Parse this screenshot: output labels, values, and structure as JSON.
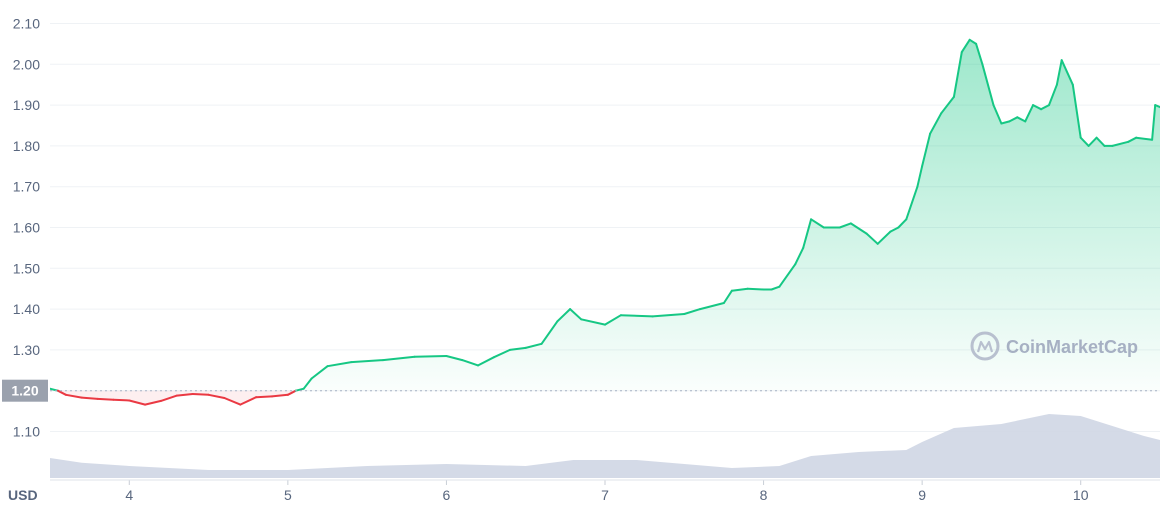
{
  "chart_data": {
    "type": "line",
    "currency": "USD",
    "ylim": [
      1.0,
      2.12
    ],
    "y_ticks": [
      "1.10",
      "1.20",
      "1.30",
      "1.40",
      "1.50",
      "1.60",
      "1.70",
      "1.80",
      "1.90",
      "2.00",
      "2.10"
    ],
    "x_ticks": [
      "4",
      "5",
      "6",
      "7",
      "8",
      "9",
      "10"
    ],
    "xlim": [
      3.5,
      10.5
    ],
    "reference": {
      "value": 1.2,
      "label": "1.20"
    },
    "grid": true,
    "watermark": "CoinMarketCap",
    "colors": {
      "up": "#16c784",
      "down": "#ea3943",
      "volume": "#cfd6e4",
      "reference_label_bg": "#9aa1ad",
      "grid": "#eff2f5",
      "text": "#58667e"
    },
    "series": [
      {
        "points": [
          [
            3.5,
            1.205
          ],
          [
            3.55,
            1.2
          ],
          [
            3.6,
            1.19
          ],
          [
            3.7,
            1.183
          ],
          [
            3.8,
            1.18
          ],
          [
            3.9,
            1.178
          ],
          [
            4.0,
            1.176
          ],
          [
            4.1,
            1.166
          ],
          [
            4.2,
            1.175
          ],
          [
            4.3,
            1.188
          ],
          [
            4.4,
            1.192
          ],
          [
            4.5,
            1.19
          ],
          [
            4.6,
            1.182
          ],
          [
            4.7,
            1.166
          ],
          [
            4.8,
            1.184
          ],
          [
            4.9,
            1.186
          ],
          [
            5.0,
            1.19
          ],
          [
            5.05,
            1.2
          ],
          [
            5.1,
            1.205
          ],
          [
            5.15,
            1.23
          ],
          [
            5.25,
            1.26
          ],
          [
            5.4,
            1.27
          ],
          [
            5.6,
            1.275
          ],
          [
            5.8,
            1.283
          ],
          [
            6.0,
            1.285
          ],
          [
            6.1,
            1.275
          ],
          [
            6.2,
            1.262
          ],
          [
            6.3,
            1.282
          ],
          [
            6.4,
            1.3
          ],
          [
            6.5,
            1.305
          ],
          [
            6.6,
            1.315
          ],
          [
            6.7,
            1.37
          ],
          [
            6.78,
            1.4
          ],
          [
            6.85,
            1.375
          ],
          [
            7.0,
            1.362
          ],
          [
            7.1,
            1.385
          ],
          [
            7.3,
            1.382
          ],
          [
            7.5,
            1.388
          ],
          [
            7.6,
            1.4
          ],
          [
            7.75,
            1.415
          ],
          [
            7.8,
            1.445
          ],
          [
            7.9,
            1.45
          ],
          [
            8.0,
            1.448
          ],
          [
            8.05,
            1.448
          ],
          [
            8.1,
            1.455
          ],
          [
            8.2,
            1.51
          ],
          [
            8.25,
            1.55
          ],
          [
            8.3,
            1.62
          ],
          [
            8.38,
            1.6
          ],
          [
            8.48,
            1.6
          ],
          [
            8.55,
            1.61
          ],
          [
            8.65,
            1.585
          ],
          [
            8.72,
            1.56
          ],
          [
            8.8,
            1.59
          ],
          [
            8.85,
            1.6
          ],
          [
            8.9,
            1.62
          ],
          [
            8.97,
            1.7
          ],
          [
            9.0,
            1.75
          ],
          [
            9.05,
            1.83
          ],
          [
            9.12,
            1.88
          ],
          [
            9.2,
            1.92
          ],
          [
            9.25,
            2.03
          ],
          [
            9.3,
            2.06
          ],
          [
            9.34,
            2.05
          ],
          [
            9.38,
            2.0
          ],
          [
            9.45,
            1.9
          ],
          [
            9.5,
            1.855
          ],
          [
            9.55,
            1.86
          ],
          [
            9.6,
            1.87
          ],
          [
            9.65,
            1.86
          ],
          [
            9.7,
            1.9
          ],
          [
            9.75,
            1.89
          ],
          [
            9.8,
            1.9
          ],
          [
            9.85,
            1.95
          ],
          [
            9.88,
            2.01
          ],
          [
            9.95,
            1.95
          ],
          [
            10.0,
            1.82
          ],
          [
            10.05,
            1.8
          ],
          [
            10.1,
            1.82
          ],
          [
            10.15,
            1.8
          ],
          [
            10.2,
            1.8
          ],
          [
            10.3,
            1.81
          ],
          [
            10.35,
            1.82
          ],
          [
            10.45,
            1.815
          ],
          [
            10.47,
            1.9
          ],
          [
            10.5,
            1.895
          ]
        ]
      }
    ],
    "volume": {
      "points": [
        [
          3.5,
          0.5
        ],
        [
          3.7,
          0.38
        ],
        [
          4.0,
          0.3
        ],
        [
          4.5,
          0.2
        ],
        [
          5.0,
          0.2
        ],
        [
          5.5,
          0.3
        ],
        [
          6.0,
          0.35
        ],
        [
          6.5,
          0.3
        ],
        [
          6.8,
          0.45
        ],
        [
          7.2,
          0.45
        ],
        [
          7.5,
          0.35
        ],
        [
          7.8,
          0.25
        ],
        [
          8.1,
          0.3
        ],
        [
          8.3,
          0.55
        ],
        [
          8.6,
          0.65
        ],
        [
          8.9,
          0.7
        ],
        [
          9.0,
          0.9
        ],
        [
          9.2,
          1.25
        ],
        [
          9.5,
          1.35
        ],
        [
          9.8,
          1.6
        ],
        [
          10.0,
          1.55
        ],
        [
          10.2,
          1.3
        ],
        [
          10.4,
          1.05
        ],
        [
          10.5,
          0.95
        ]
      ]
    }
  }
}
